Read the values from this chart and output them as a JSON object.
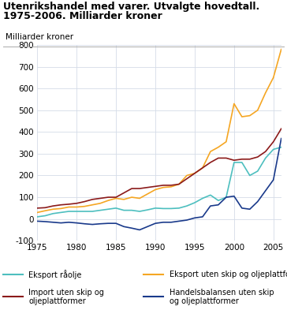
{
  "title_line1": "Utenrikshandel med varer. Utvalgte hovedtall.",
  "title_line2": "1975-2006. Milliarder kroner",
  "ylabel": "Milliarder kroner",
  "xlim": [
    1975,
    2006
  ],
  "ylim": [
    -100,
    800
  ],
  "yticks": [
    -100,
    0,
    100,
    200,
    300,
    400,
    500,
    600,
    700,
    800
  ],
  "xticks": [
    1975,
    1980,
    1985,
    1990,
    1995,
    2000,
    2005
  ],
  "background_color": "#ffffff",
  "grid_color": "#d5dce8",
  "years": [
    1975,
    1976,
    1977,
    1978,
    1979,
    1980,
    1981,
    1982,
    1983,
    1984,
    1985,
    1986,
    1987,
    1988,
    1989,
    1990,
    1991,
    1992,
    1993,
    1994,
    1995,
    1996,
    1997,
    1998,
    1999,
    2000,
    2001,
    2002,
    2003,
    2004,
    2005,
    2006
  ],
  "eksport_raolje": [
    10,
    15,
    25,
    30,
    35,
    35,
    35,
    35,
    40,
    45,
    50,
    40,
    40,
    35,
    42,
    50,
    48,
    48,
    50,
    60,
    75,
    95,
    110,
    85,
    100,
    260,
    260,
    200,
    220,
    280,
    320,
    330
  ],
  "eksport_uten_skip": [
    30,
    38,
    45,
    48,
    55,
    55,
    58,
    65,
    72,
    85,
    95,
    90,
    100,
    95,
    115,
    135,
    145,
    148,
    160,
    200,
    210,
    235,
    310,
    330,
    355,
    530,
    470,
    475,
    500,
    580,
    650,
    780
  ],
  "import_uten_skip": [
    50,
    52,
    60,
    65,
    68,
    72,
    80,
    90,
    95,
    100,
    100,
    120,
    140,
    140,
    145,
    150,
    155,
    155,
    160,
    185,
    210,
    235,
    260,
    280,
    280,
    270,
    275,
    275,
    285,
    310,
    355,
    415
  ],
  "handelsbalansen": [
    -10,
    -12,
    -15,
    -18,
    -15,
    -18,
    -22,
    -25,
    -22,
    -20,
    -20,
    -35,
    -42,
    -50,
    -35,
    -20,
    -15,
    -15,
    -10,
    -5,
    5,
    10,
    60,
    65,
    100,
    105,
    50,
    45,
    80,
    130,
    180,
    370
  ],
  "colors": {
    "eksport_raolje": "#4dbfbf",
    "eksport_uten_skip": "#f5a623",
    "import_uten_skip": "#8b1a1a",
    "handelsbalansen": "#1a3a8b"
  },
  "legend": [
    {
      "label": "Eksport råolje",
      "color": "#4dbfbf",
      "col": 0
    },
    {
      "label": "Eksport uten skip og oljeplattformer",
      "color": "#f5a623",
      "col": 1
    },
    {
      "label": "Import uten skip og\noljeplattformer",
      "color": "#8b1a1a",
      "col": 0
    },
    {
      "label": "Handelsbalansen uten skip\nog oljeplattformer",
      "color": "#1a3a8b",
      "col": 1
    }
  ]
}
